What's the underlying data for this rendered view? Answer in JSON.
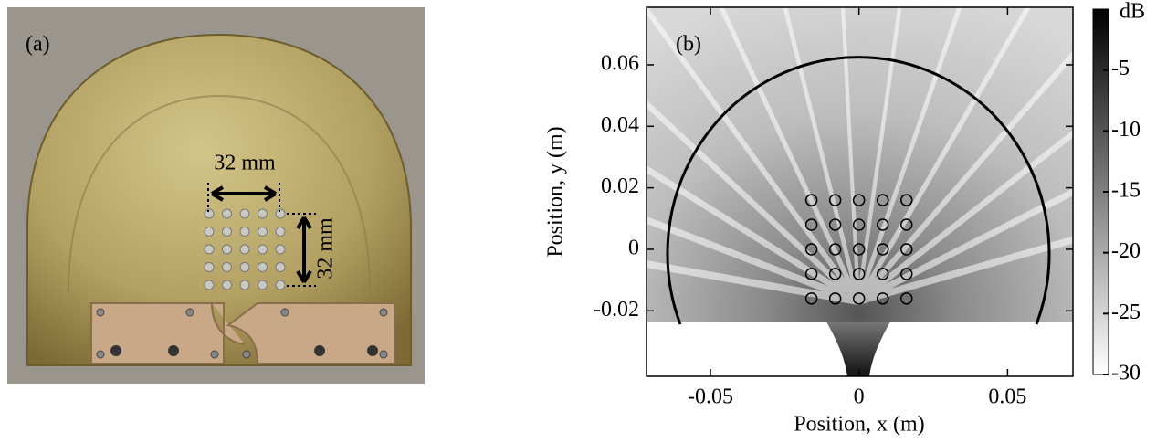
{
  "photo": {
    "label": "(a)",
    "dimension_labels": [
      "32 mm",
      "32 mm"
    ]
  },
  "chart_data": {
    "type": "scatter",
    "panel_label": "(b)",
    "xlabel": "Position, x (m)",
    "ylabel": "Position, y (m)",
    "xlim": [
      -0.0715,
      0.072
    ],
    "ylim": [
      -0.0413,
      0.0787
    ],
    "xticks": [
      -0.05,
      0,
      0.05
    ],
    "yticks": [
      -0.02,
      0,
      0.02,
      0.04,
      0.06
    ],
    "series": [
      {
        "color": "#000000",
        "x": [
          -0.016,
          -0.008,
          0,
          0.008,
          0.016,
          -0.016,
          -0.008,
          0,
          0.008,
          0.016,
          -0.016,
          -0.008,
          0,
          0.008,
          0.016,
          -0.016,
          -0.008,
          0,
          0.008,
          0.016,
          -0.016,
          -0.008,
          0,
          0.008,
          0.016
        ],
        "y": [
          0.016,
          0.016,
          0.016,
          0.016,
          0.016,
          0.008,
          0.008,
          0.008,
          0.008,
          0.008,
          0,
          0,
          0,
          0,
          0,
          -0.008,
          -0.008,
          -0.008,
          -0.008,
          -0.008,
          -0.016,
          -0.016,
          -0.016,
          -0.016,
          -0.016
        ]
      }
    ],
    "colorbar": {
      "label": "dB",
      "lim": [
        -30,
        0
      ],
      "ticks": [
        -5,
        -10,
        -15,
        -20,
        -25,
        -30
      ]
    }
  }
}
